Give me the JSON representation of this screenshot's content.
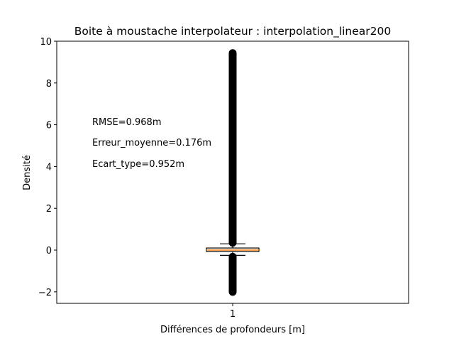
{
  "chart_data": {
    "type": "box",
    "title": "Boite à moustache interpolateur : interpolation_linear200",
    "xlabel": "Différences de profondeurs [m]",
    "ylabel": "Densité",
    "categories": [
      "1"
    ],
    "ylim": [
      -2.55,
      10
    ],
    "yticks": [
      -2,
      0,
      2,
      4,
      6,
      8,
      10
    ],
    "ytick_labels": [
      "−2",
      "0",
      "2",
      "4",
      "6",
      "8",
      "10"
    ],
    "box": {
      "q1": -0.07,
      "median": 0.0,
      "q3": 0.1,
      "whisker_low": -0.25,
      "whisker_high": 0.3
    },
    "outliers": {
      "upper_range": [
        0.35,
        9.45
      ],
      "lower_range": [
        -2.0,
        -0.3
      ]
    },
    "colors": {
      "box_edge": "#000000",
      "median": "#ff7f0e",
      "box_fill": "#ffffff",
      "outlier": "#000000"
    },
    "annotations": [
      "RMSE=0.968m",
      "Erreur_moyenne=0.176m",
      "Ecart_type=0.952m"
    ]
  }
}
